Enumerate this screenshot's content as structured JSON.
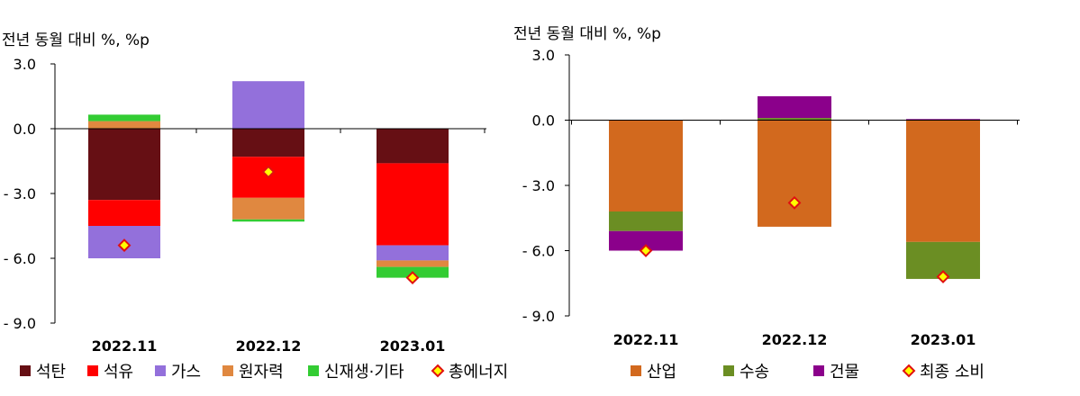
{
  "chart_data": [
    {
      "type": "bar",
      "stacked": true,
      "ylabel": "전년 동월 대비 %, %p",
      "ylim": [
        -9.0,
        3.0
      ],
      "yticks": [
        "3.0",
        "0.0",
        "- 3.0",
        "- 6.0",
        "- 9.0"
      ],
      "categories": [
        "2022.11",
        "2022.12",
        "2023.01"
      ],
      "series": [
        {
          "name": "석탄",
          "color": "#660F14",
          "values": [
            -3.3,
            -1.3,
            -1.6
          ]
        },
        {
          "name": "석유",
          "color": "#FF0000",
          "values": [
            -1.2,
            -1.9,
            -3.8
          ]
        },
        {
          "name": "가스",
          "color": "#9370DB",
          "values": [
            -1.5,
            2.2,
            -0.7
          ]
        },
        {
          "name": "원자력",
          "color": "#E08840",
          "values": [
            0.35,
            -1.0,
            -0.3
          ]
        },
        {
          "name": "신재생·기타",
          "color": "#33CC33",
          "values": [
            0.3,
            -0.1,
            -0.5
          ]
        }
      ],
      "total": {
        "name": "총에너지",
        "values": [
          -5.4,
          -2.0,
          -6.9
        ]
      }
    },
    {
      "type": "bar",
      "stacked": true,
      "ylabel": "전년 동월 대비 %, %p",
      "ylim": [
        -9.0,
        3.0
      ],
      "yticks": [
        "3.0",
        "0.0",
        "- 3.0",
        "- 6.0",
        "- 9.0"
      ],
      "categories": [
        "2022.11",
        "2022.12",
        "2023.01"
      ],
      "series": [
        {
          "name": "산업",
          "color": "#D2691E",
          "values": [
            -4.2,
            -4.9,
            -5.6
          ]
        },
        {
          "name": "수송",
          "color": "#6B8E23",
          "values": [
            -0.9,
            0.1,
            -1.7
          ]
        },
        {
          "name": "건물",
          "color": "#8B008B",
          "values": [
            -0.9,
            1.0,
            0.05
          ]
        }
      ],
      "total": {
        "name": "최종 소비",
        "values": [
          -6.0,
          -3.8,
          -7.2
        ]
      }
    }
  ]
}
